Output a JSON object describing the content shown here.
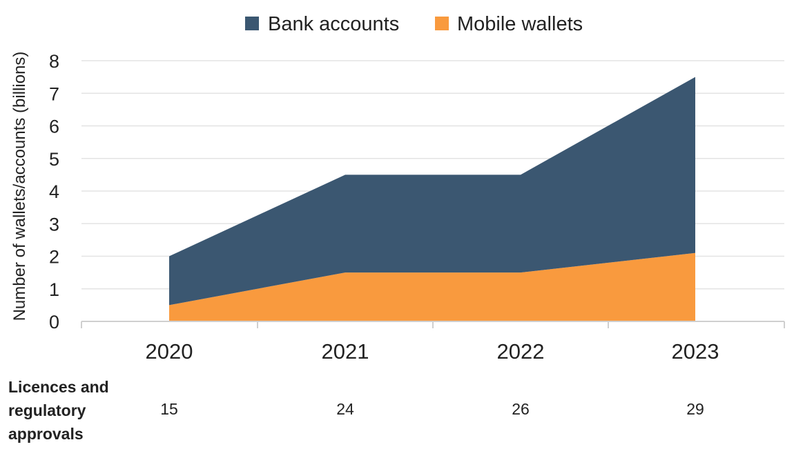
{
  "chart_data": {
    "type": "area",
    "stacked": true,
    "categories": [
      "2020",
      "2021",
      "2022",
      "2023"
    ],
    "series": [
      {
        "name": "Mobile wallets",
        "values": [
          0.5,
          1.5,
          1.5,
          2.1
        ],
        "color": "#f99a3e"
      },
      {
        "name": "Bank accounts",
        "values": [
          1.5,
          3.0,
          3.0,
          5.4
        ],
        "color": "#3b5771"
      }
    ],
    "legend_order": [
      "Bank accounts",
      "Mobile wallets"
    ],
    "legend_position": "top",
    "ylabel": "Number of wallets/accounts (billions)",
    "ylim": [
      0,
      8
    ],
    "yticks": [
      "0",
      "1",
      "2",
      "3",
      "4",
      "5",
      "6",
      "7",
      "8"
    ],
    "grid": "horizontal",
    "grid_color": "#e3e3e3",
    "table_row": {
      "label_lines": [
        "Licences and",
        "regulatory",
        "approvals"
      ],
      "values": [
        "15",
        "24",
        "26",
        "29"
      ]
    }
  }
}
